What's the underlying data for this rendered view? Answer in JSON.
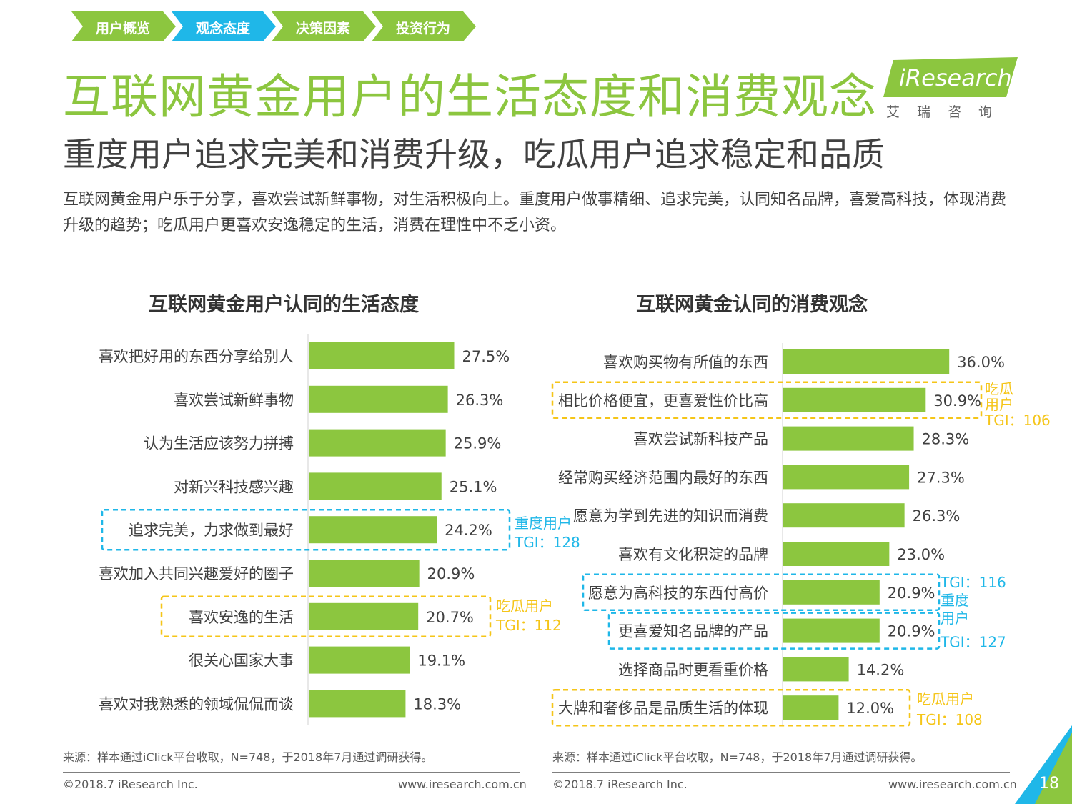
{
  "nav": {
    "items": [
      {
        "label": "用户概览",
        "color": "#8cc63f"
      },
      {
        "label": "观念态度",
        "color": "#1fb7e8"
      },
      {
        "label": "决策因素",
        "color": "#8cc63f"
      },
      {
        "label": "投资行为",
        "color": "#8cc63f"
      }
    ]
  },
  "header": {
    "title": "互联网黄金用户的生活态度和消费观念",
    "subtitle": "重度用户追求完美和消费升级，吃瓜用户追求稳定和品质",
    "description": "互联网黄金用户乐于分享，喜欢尝试新鲜事物，对生活积极向上。重度用户做事精细、追求完美，认同知名品牌，喜爱高科技，体现消费升级的趋势；吃瓜用户更喜欢安逸稳定的生活，消费在理性中不乏小资。"
  },
  "logo": {
    "name": "iResearch",
    "cn": "艾瑞咨询",
    "color": "#8cc63f"
  },
  "colors": {
    "bar": "#8cc63f",
    "heavy": "#1fb7e8",
    "casual": "#f5c518"
  },
  "chart_data": [
    {
      "type": "bar",
      "orientation": "horizontal",
      "title": "互联网黄金用户认同的生活态度",
      "categories": [
        "喜欢把好用的东西分享给别人",
        "喜欢尝试新鲜事物",
        "认为生活应该努力拼搏",
        "对新兴科技感兴趣",
        "追求完美，力求做到最好",
        "喜欢加入共同兴趣爱好的圈子",
        "喜欢安逸的生活",
        "很关心国家大事",
        "喜欢对我熟悉的领域侃侃而谈"
      ],
      "values": [
        27.5,
        26.3,
        25.9,
        25.1,
        24.2,
        20.9,
        20.7,
        19.1,
        18.3
      ],
      "value_labels": [
        "27.5%",
        "26.3%",
        "25.9%",
        "25.1%",
        "24.2%",
        "20.9%",
        "20.7%",
        "19.1%",
        "18.3%"
      ],
      "highlights": [
        {
          "rows": [
            4
          ],
          "style": "heavy",
          "lines": [
            "重度用户",
            "TGI：128"
          ]
        },
        {
          "rows": [
            6
          ],
          "style": "casual",
          "lines": [
            "吃瓜用户",
            "TGI：112"
          ]
        }
      ]
    },
    {
      "type": "bar",
      "orientation": "horizontal",
      "title": "互联网黄金认同的消费观念",
      "categories": [
        "喜欢购买物有所值的东西",
        "相比价格便宜，更喜爱性价比高",
        "喜欢尝试新科技产品",
        "经常购买经济范围内最好的东西",
        "愿意为学到先进的知识而消费",
        "喜欢有文化积淀的品牌",
        "愿意为高科技的东西付高价",
        "更喜爱知名品牌的产品",
        "选择商品时更看重价格",
        "大牌和奢侈品是品质生活的体现"
      ],
      "values": [
        36.0,
        30.9,
        28.3,
        27.3,
        26.3,
        23.0,
        20.9,
        20.9,
        14.2,
        12.0
      ],
      "value_labels": [
        "36.0%",
        "30.9%",
        "28.3%",
        "27.3%",
        "26.3%",
        "23.0%",
        "20.9%",
        "20.9%",
        "14.2%",
        "12.0%"
      ],
      "highlights": [
        {
          "rows": [
            1
          ],
          "style": "casual",
          "lines": [
            "吃瓜",
            "用户",
            "TGI：106"
          ]
        },
        {
          "rows": [
            6
          ],
          "style": "heavy",
          "lines": [
            "TGI：116",
            "重度",
            "用户"
          ]
        },
        {
          "rows": [
            7
          ],
          "style": "heavy",
          "lines": [
            "TGI：127"
          ]
        },
        {
          "rows": [
            9
          ],
          "style": "casual",
          "lines": [
            "吃瓜用户",
            "TGI：108"
          ]
        }
      ]
    }
  ],
  "footer": {
    "source": "来源：样本通过iClick平台收取，N=748，于2018年7月通过调研获得。",
    "copyright": "©2018.7 iResearch Inc.",
    "website": "www.iresearch.com.cn",
    "page": "18"
  }
}
